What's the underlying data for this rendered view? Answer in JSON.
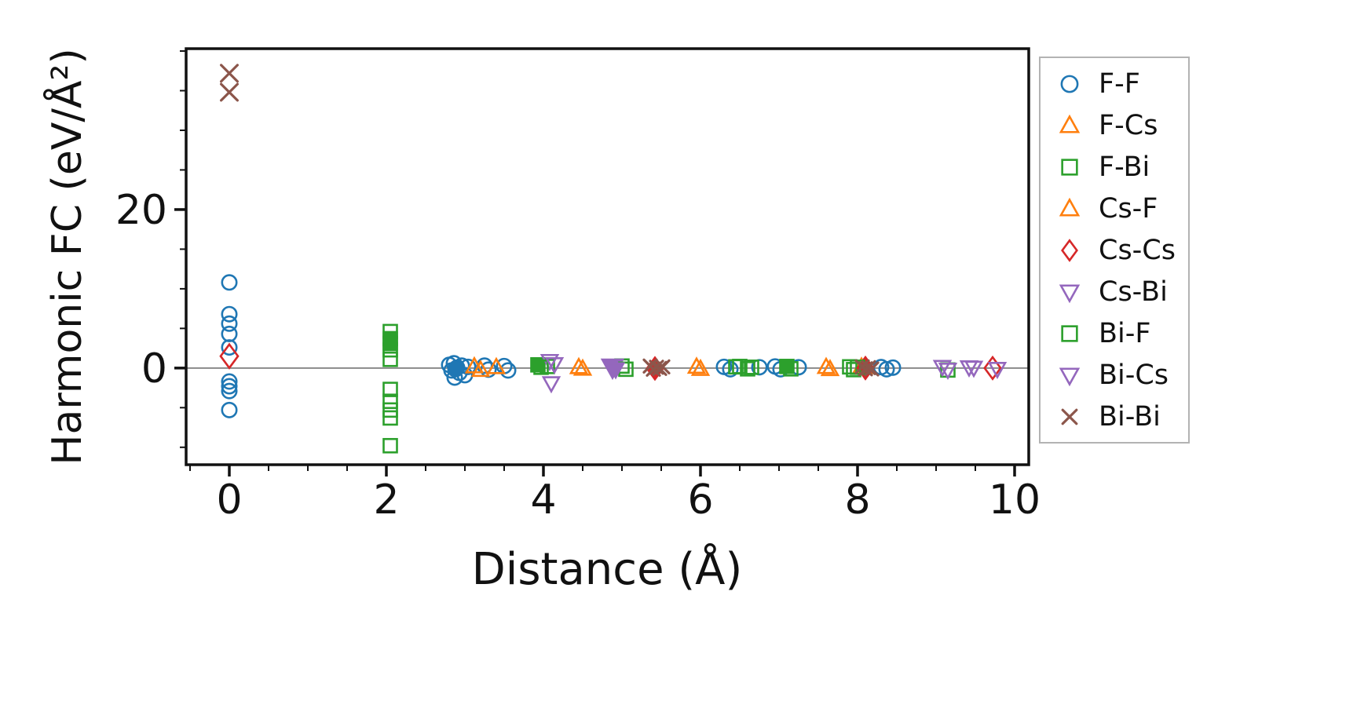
{
  "figure": {
    "background": "#ffffff"
  },
  "chart_data": {
    "type": "scatter",
    "title": "",
    "xlabel": "Distance (Å)",
    "ylabel": "Harmonic FC (eV/Å²)",
    "xlim": [
      -0.55,
      10.18
    ],
    "ylim": [
      -12.2,
      40.3
    ],
    "x_ticks": [
      0,
      2,
      4,
      6,
      8,
      10
    ],
    "y_ticks": [
      0,
      20
    ],
    "x_minor_step": 0.5,
    "y_minor_step": 5,
    "grid": false,
    "legend_position": "outside-right",
    "zero_line_color": "#8a8a8a",
    "frame_color": "#111111",
    "series": [
      {
        "name": "F-F",
        "marker": "circle",
        "color": "#1f77b4",
        "points": [
          [
            0,
            10.8
          ],
          [
            0,
            6.8
          ],
          [
            0,
            5.6
          ],
          [
            0,
            4.3
          ],
          [
            0,
            2.6
          ],
          [
            0,
            -1.7
          ],
          [
            0,
            -2.3
          ],
          [
            0,
            -2.9
          ],
          [
            0,
            -5.3
          ],
          [
            2.8,
            0.4
          ],
          [
            2.83,
            -0.3
          ],
          [
            2.86,
            0.6
          ],
          [
            2.9,
            0.05,
            {
              "f": 1
            }
          ],
          [
            2.93,
            -0.6
          ],
          [
            2.96,
            0.3
          ],
          [
            3.0,
            -0.9
          ],
          [
            3.04,
            0.15
          ],
          [
            2.87,
            -1.2
          ],
          [
            2.88,
            -0.15,
            {
              "f": 1
            }
          ],
          [
            3.25,
            0.3
          ],
          [
            3.3,
            -0.2
          ],
          [
            3.5,
            0.25
          ],
          [
            3.55,
            -0.3
          ],
          [
            6.3,
            0.15
          ],
          [
            6.38,
            -0.15
          ],
          [
            6.75,
            0.1
          ],
          [
            6.95,
            0.2
          ],
          [
            7.02,
            -0.15
          ],
          [
            7.25,
            0.1
          ],
          [
            8.3,
            0.12
          ],
          [
            8.37,
            -0.15
          ],
          [
            8.45,
            0.05
          ]
        ]
      },
      {
        "name": "F-Cs",
        "marker": "triangle-up",
        "color": "#ff7f0e",
        "points": [
          [
            3.12,
            0.2
          ],
          [
            4.45,
            0.1
          ],
          [
            5.95,
            0.15
          ],
          [
            7.6,
            0.12
          ],
          [
            8.05,
            0.15
          ]
        ]
      },
      {
        "name": "F-Bi",
        "marker": "square",
        "color": "#2ca02c",
        "points": [
          [
            2.05,
            4.6
          ],
          [
            2.05,
            3.7,
            {
              "f": 1
            }
          ],
          [
            2.05,
            3.1,
            {
              "f": 1
            }
          ],
          [
            2.05,
            2.3
          ],
          [
            2.05,
            1.1
          ],
          [
            2.05,
            -2.7
          ],
          [
            2.05,
            -4.2
          ],
          [
            2.05,
            -5.3
          ],
          [
            2.05,
            -6.3
          ],
          [
            2.05,
            -9.8
          ],
          [
            3.93,
            0.4,
            {
              "f": 1
            }
          ],
          [
            4.05,
            0.2
          ],
          [
            5.0,
            0.25
          ],
          [
            6.45,
            0.15
          ],
          [
            6.6,
            -0.1
          ],
          [
            7.1,
            0.2,
            {
              "f": 1
            }
          ],
          [
            7.9,
            0.15
          ],
          [
            9.15,
            -0.25
          ]
        ]
      },
      {
        "name": "Cs-F",
        "marker": "triangle-up",
        "color": "#ff7f0e",
        "points": [
          [
            3.2,
            -0.25
          ],
          [
            3.4,
            0.1
          ],
          [
            4.5,
            -0.1
          ],
          [
            6.0,
            -0.12
          ],
          [
            7.65,
            -0.15
          ],
          [
            8.1,
            0.1
          ]
        ]
      },
      {
        "name": "Cs-Cs",
        "marker": "diamond",
        "color": "#d62728",
        "points": [
          [
            0,
            1.5,
            {
              "s": 13
            }
          ],
          [
            5.42,
            -0.05,
            {
              "s": 12,
              "f": 1
            }
          ],
          [
            8.1,
            0,
            {
              "s": 12,
              "f": 1
            }
          ],
          [
            9.72,
            0,
            {
              "s": 12
            }
          ]
        ]
      },
      {
        "name": "Cs-Bi",
        "marker": "triangle-down",
        "color": "#9467bd",
        "points": [
          [
            4.08,
            0.9
          ],
          [
            4.1,
            -1.9
          ],
          [
            4.88,
            0.1,
            {
              "s": 13,
              "f": 1
            }
          ],
          [
            9.08,
            0.15
          ],
          [
            9.42,
            0.1
          ]
        ]
      },
      {
        "name": "Bi-F",
        "marker": "square",
        "color": "#2ca02c",
        "points": [
          [
            3.97,
            0.1
          ],
          [
            5.05,
            -0.15
          ],
          [
            6.5,
            0.2
          ],
          [
            6.65,
            0.1
          ],
          [
            7.15,
            -0.1
          ],
          [
            7.95,
            -0.2
          ],
          [
            8.0,
            0.1
          ]
        ]
      },
      {
        "name": "Bi-Cs",
        "marker": "triangle-down",
        "color": "#9467bd",
        "points": [
          [
            4.14,
            0.5
          ],
          [
            4.92,
            -0.15,
            {
              "f": 1
            }
          ],
          [
            9.15,
            -0.2
          ],
          [
            9.48,
            0.05
          ],
          [
            9.78,
            -0.1
          ]
        ]
      },
      {
        "name": "Bi-Bi",
        "marker": "x",
        "color": "#8c564b",
        "points": [
          [
            0,
            37.2,
            {
              "s": 13
            }
          ],
          [
            0,
            34.8,
            {
              "s": 13
            }
          ],
          [
            5.36,
            0.25
          ],
          [
            5.4,
            -0.15
          ],
          [
            5.44,
            0.1
          ],
          [
            5.48,
            -0.05
          ],
          [
            5.52,
            0.15
          ],
          [
            8.06,
            0.15
          ],
          [
            8.1,
            -0.1
          ],
          [
            8.14,
            0.05
          ],
          [
            8.18,
            -0.12
          ]
        ]
      }
    ]
  }
}
